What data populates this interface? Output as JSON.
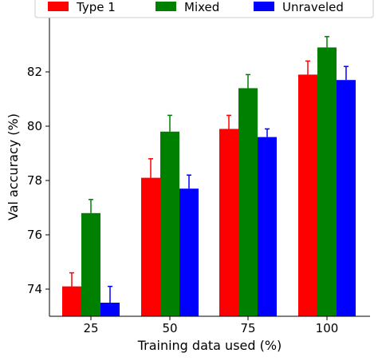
{
  "chart_data": {
    "type": "bar",
    "categories": [
      "25",
      "50",
      "75",
      "100"
    ],
    "series": [
      {
        "name": "Type 1",
        "color": "#ff0000",
        "values": [
          74.1,
          78.1,
          79.9,
          81.9
        ],
        "errors": [
          0.5,
          0.7,
          0.5,
          0.5
        ]
      },
      {
        "name": "Mixed",
        "color": "#008000",
        "values": [
          76.8,
          79.8,
          81.4,
          82.9
        ],
        "errors": [
          0.5,
          0.6,
          0.5,
          0.4
        ]
      },
      {
        "name": "Unraveled",
        "color": "#0000ff",
        "values": [
          73.5,
          77.7,
          79.6,
          81.7
        ],
        "errors": [
          0.6,
          0.5,
          0.3,
          0.5
        ]
      }
    ],
    "xlabel": "Training data used (%)",
    "ylabel": "Val accuracy (%)",
    "ylim": [
      73,
      84
    ],
    "yticks": [
      74,
      76,
      78,
      80,
      82
    ],
    "grid": false,
    "legend": "top"
  }
}
